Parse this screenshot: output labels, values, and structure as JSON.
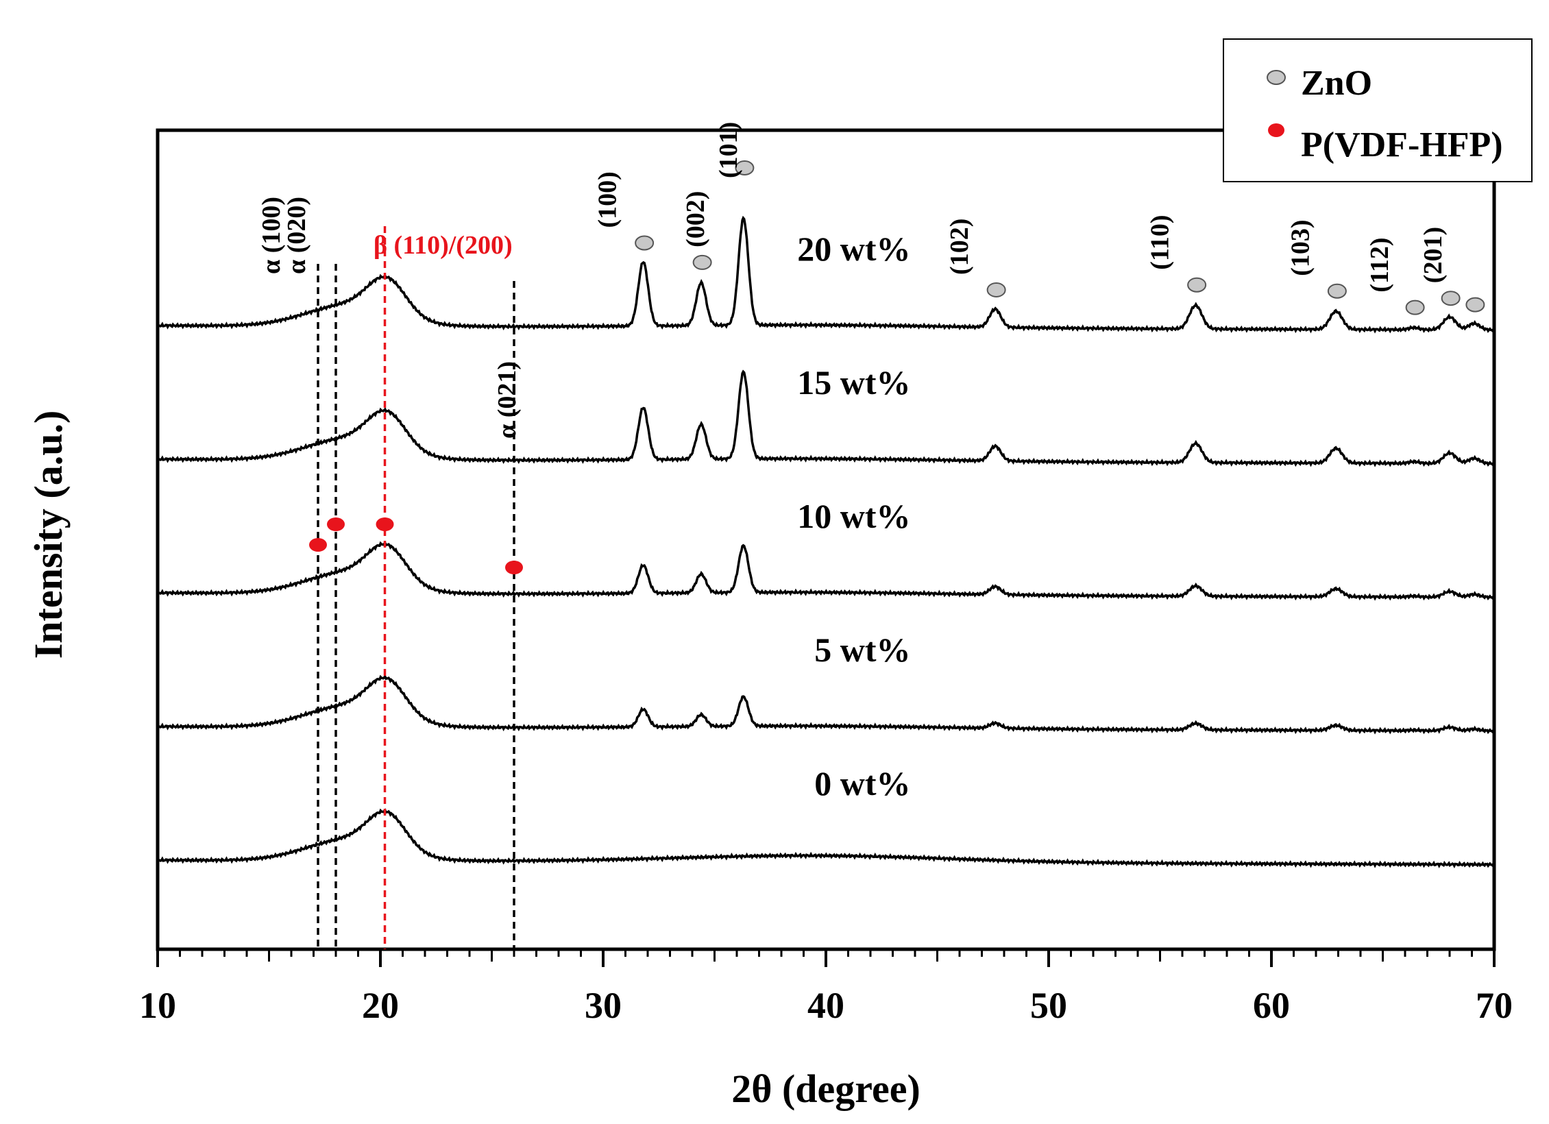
{
  "chart_data": {
    "type": "line",
    "xlabel": "2θ (degree)",
    "ylabel": "Intensity (a.u.)",
    "xlim": [
      10,
      70
    ],
    "xticks": [
      10,
      20,
      30,
      40,
      50,
      60,
      70
    ],
    "grid": false,
    "legend": {
      "position": "top-right",
      "entries": [
        {
          "label": "ZnO",
          "marker": "gray-ellipse",
          "color": "#c8c8c8"
        },
        {
          "label": "P(VDF-HFP)",
          "marker": "red-ellipse",
          "color": "#e8141c"
        }
      ]
    },
    "zno_peaks": [
      {
        "x": 31.8,
        "label": "(100)"
      },
      {
        "x": 34.4,
        "label": "(002)"
      },
      {
        "x": 36.3,
        "label": "(101)"
      },
      {
        "x": 47.6,
        "label": "(102)"
      },
      {
        "x": 56.6,
        "label": "(110)"
      },
      {
        "x": 62.9,
        "label": "(103)"
      },
      {
        "x": 66.4,
        "label": "(112)"
      },
      {
        "x": 68.0,
        "label": "(201)"
      },
      {
        "x": 69.1,
        "label": ""
      }
    ],
    "polymer_peaks": [
      {
        "x": 17.2,
        "label": "α (100)",
        "line_color": "#000000"
      },
      {
        "x": 18.0,
        "label": "α (020)",
        "line_color": "#000000"
      },
      {
        "x": 20.2,
        "label": "β (110)/(200)",
        "line_color": "#e8141c"
      },
      {
        "x": 26.0,
        "label": "α (021)",
        "line_color": "#000000"
      }
    ],
    "series": [
      {
        "name": "0 wt%",
        "baseline": 0.0,
        "zno_scale": 0.0
      },
      {
        "name": "5 wt%",
        "baseline": 1.0,
        "zno_scale": 0.22
      },
      {
        "name": "10 wt%",
        "baseline": 2.0,
        "zno_scale": 0.35
      },
      {
        "name": "15 wt%",
        "baseline": 3.0,
        "zno_scale": 0.65
      },
      {
        "name": "20 wt%",
        "baseline": 4.0,
        "zno_scale": 0.8
      }
    ]
  }
}
